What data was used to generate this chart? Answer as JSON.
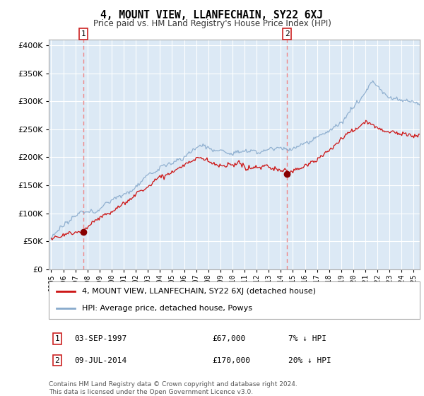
{
  "title": "4, MOUNT VIEW, LLANFECHAIN, SY22 6XJ",
  "subtitle": "Price paid vs. HM Land Registry's House Price Index (HPI)",
  "legend_line1": "4, MOUNT VIEW, LLANFECHAIN, SY22 6XJ (detached house)",
  "legend_line2": "HPI: Average price, detached house, Powys",
  "footnote1": "Contains HM Land Registry data © Crown copyright and database right 2024.",
  "footnote2": "This data is licensed under the Open Government Licence v3.0.",
  "sale1_date_num": 1997.67,
  "sale1_price": 67000,
  "sale2_date_num": 2014.52,
  "sale2_price": 170000,
  "ylim": [
    0,
    410000
  ],
  "xlim_start": 1994.8,
  "xlim_end": 2025.5,
  "bg_color": "#dce9f5",
  "grid_color": "#ffffff",
  "red_line_color": "#cc1111",
  "blue_line_color": "#88aacc",
  "sale_dot_color": "#880000",
  "dashed_color": "#ee8888",
  "yticks": [
    0,
    50000,
    100000,
    150000,
    200000,
    250000,
    300000,
    350000,
    400000
  ],
  "xticks": [
    1995,
    1996,
    1997,
    1998,
    1999,
    2000,
    2001,
    2002,
    2003,
    2004,
    2005,
    2006,
    2007,
    2008,
    2009,
    2010,
    2011,
    2012,
    2013,
    2014,
    2015,
    2016,
    2017,
    2018,
    2019,
    2020,
    2021,
    2022,
    2023,
    2024,
    2025
  ]
}
